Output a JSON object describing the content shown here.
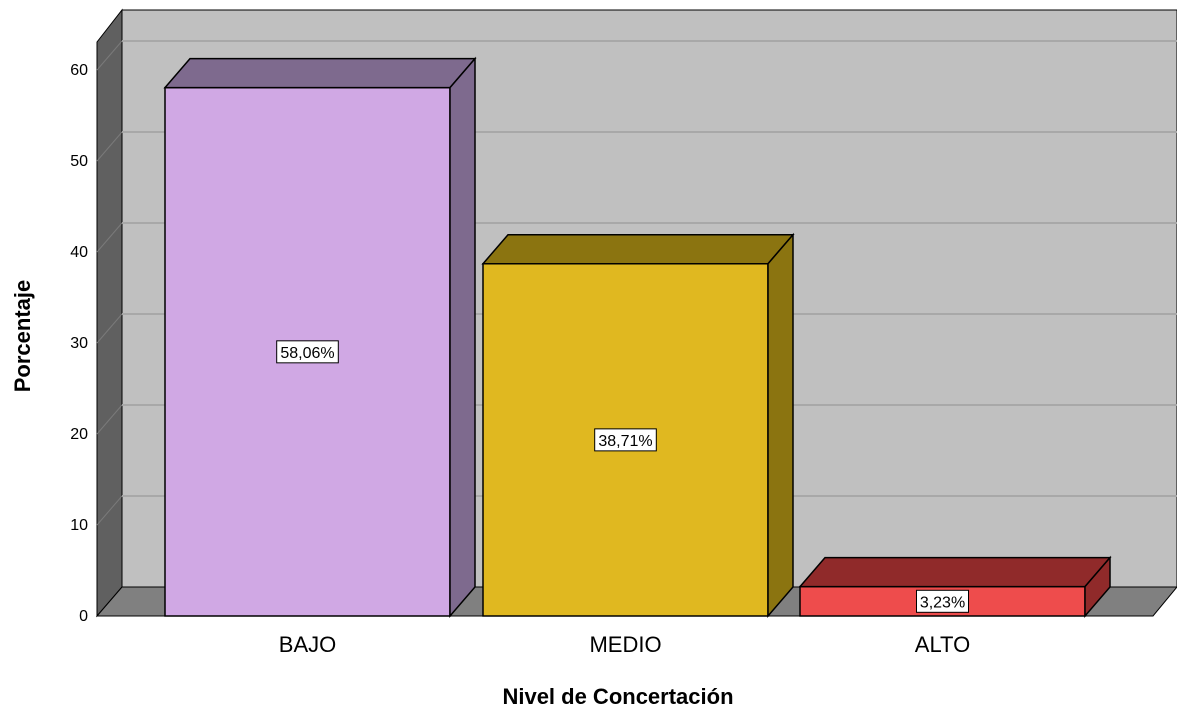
{
  "chart_data": {
    "type": "bar",
    "three_d": true,
    "categories": [
      "BAJO",
      "MEDIO",
      "ALTO"
    ],
    "values": [
      58.06,
      38.71,
      3.23
    ],
    "data_labels": [
      "58,06%",
      "38,71%",
      "3,23%"
    ],
    "xlabel": "Nivel de Concertación",
    "ylabel": "Porcentaje",
    "ylim": [
      0,
      60
    ],
    "yticks": [
      0,
      10,
      20,
      30,
      40,
      50,
      60
    ],
    "grid": true,
    "legend": "none",
    "colors": {
      "background": "#c0c0c0",
      "floor": "#808080",
      "left_wall": "#606060",
      "gridline": "#a8a8a8",
      "bar_fronts": [
        "#d0a8e4",
        "#e0b820",
        "#ee4c4c"
      ],
      "bar_sides": [
        "#7e6a8e",
        "#8b7410",
        "#902a2a"
      ]
    }
  }
}
